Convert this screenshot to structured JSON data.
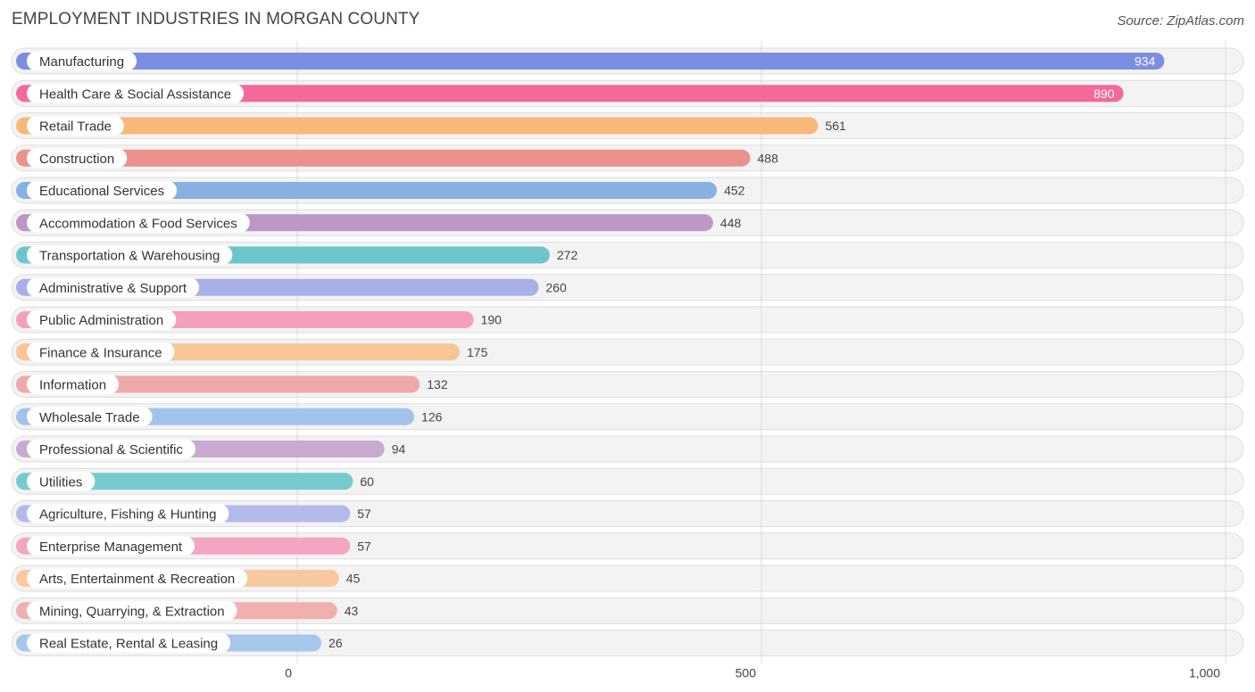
{
  "title": "EMPLOYMENT INDUSTRIES IN MORGAN COUNTY",
  "source": "Source: ZipAtlas.com",
  "chart_data": {
    "type": "bar",
    "orientation": "horizontal",
    "title": "EMPLOYMENT INDUSTRIES IN MORGAN COUNTY",
    "xlabel": "",
    "ylabel": "",
    "xlim": [
      0,
      1000
    ],
    "xticks": [
      0,
      500,
      1000
    ],
    "xtick_labels": [
      "0",
      "500",
      "1,000"
    ],
    "grid": true,
    "categories": [
      "Manufacturing",
      "Health Care & Social Assistance",
      "Retail Trade",
      "Construction",
      "Educational Services",
      "Accommodation & Food Services",
      "Transportation & Warehousing",
      "Administrative & Support",
      "Public Administration",
      "Finance & Insurance",
      "Information",
      "Wholesale Trade",
      "Professional & Scientific",
      "Utilities",
      "Agriculture, Fishing & Hunting",
      "Enterprise Management",
      "Arts, Entertainment & Recreation",
      "Mining, Quarrying, & Extraction",
      "Real Estate, Rental & Leasing"
    ],
    "values": [
      934,
      890,
      561,
      488,
      452,
      448,
      272,
      260,
      190,
      175,
      132,
      126,
      94,
      60,
      57,
      57,
      45,
      43,
      26
    ],
    "value_labels": [
      "934",
      "890",
      "561",
      "488",
      "452",
      "448",
      "272",
      "260",
      "190",
      "175",
      "132",
      "126",
      "94",
      "60",
      "57",
      "57",
      "45",
      "43",
      "26"
    ],
    "colors": [
      "#7b8ee0",
      "#f2699a",
      "#f8b878",
      "#eb928c",
      "#88b0e2",
      "#bd97c6",
      "#6cc5cc",
      "#a8b0e8",
      "#f59fbe",
      "#f8c595",
      "#efaaa8",
      "#a2c3ea",
      "#c9a9d0",
      "#76cace",
      "#b3baeb",
      "#f5a4c2",
      "#f8c99e",
      "#f0b1ae",
      "#a7c6ec"
    ]
  }
}
